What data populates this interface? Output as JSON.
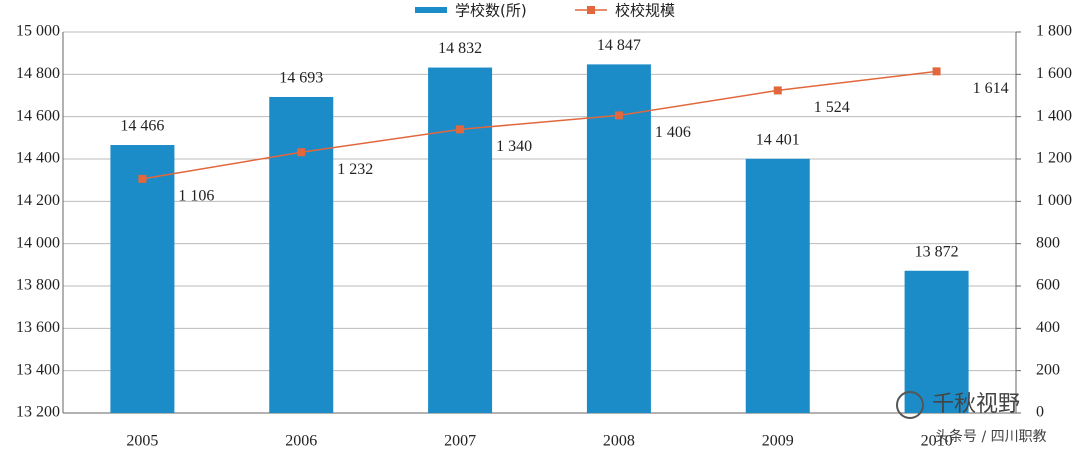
{
  "chart_data": {
    "type": "bar",
    "categories": [
      "2005",
      "2006",
      "2007",
      "2008",
      "2009",
      "2010"
    ],
    "series": [
      {
        "name": "学校数(所)",
        "type": "bar",
        "color": "#1b8cc8",
        "axis": "y",
        "values": [
          14466,
          14693,
          14832,
          14847,
          14401,
          13872
        ],
        "value_labels": [
          "14 466",
          "14 693",
          "14 832",
          "14 847",
          "14 401",
          "13 872"
        ]
      },
      {
        "name": "校校规模",
        "type": "line",
        "color": "#e2673c",
        "axis": "y2",
        "values": [
          1106,
          1232,
          1340,
          1406,
          1524,
          1614
        ],
        "value_labels": [
          "1 106",
          "1 232",
          "1 340",
          "1 406",
          "1 524",
          "1 614"
        ]
      }
    ],
    "ylim": [
      13200,
      15000
    ],
    "yticks": [
      {
        "value": 13200,
        "label": "13 200"
      },
      {
        "value": 13400,
        "label": "13 400"
      },
      {
        "value": 13600,
        "label": "13 600"
      },
      {
        "value": 13800,
        "label": "13 800"
      },
      {
        "value": 14000,
        "label": "14 000"
      },
      {
        "value": 14200,
        "label": "14 200"
      },
      {
        "value": 14400,
        "label": "14 400"
      },
      {
        "value": 14600,
        "label": "14 600"
      },
      {
        "value": 14800,
        "label": "14 800"
      },
      {
        "value": 15000,
        "label": "15 000"
      }
    ],
    "y2lim": [
      0,
      1800
    ],
    "y2ticks": [
      0,
      200,
      400,
      600,
      800,
      {
        "value": 1000,
        "label": "1 000"
      },
      {
        "value": 1200,
        "label": "1 200"
      },
      {
        "value": 1400,
        "label": "1 400"
      },
      {
        "value": 1600,
        "label": "1 600"
      },
      {
        "value": 1800,
        "label": "1 800"
      }
    ],
    "grid": true,
    "legend": "top",
    "watermark": {
      "logo": "千秋视野",
      "source": "头条号 / 四川职教"
    }
  }
}
